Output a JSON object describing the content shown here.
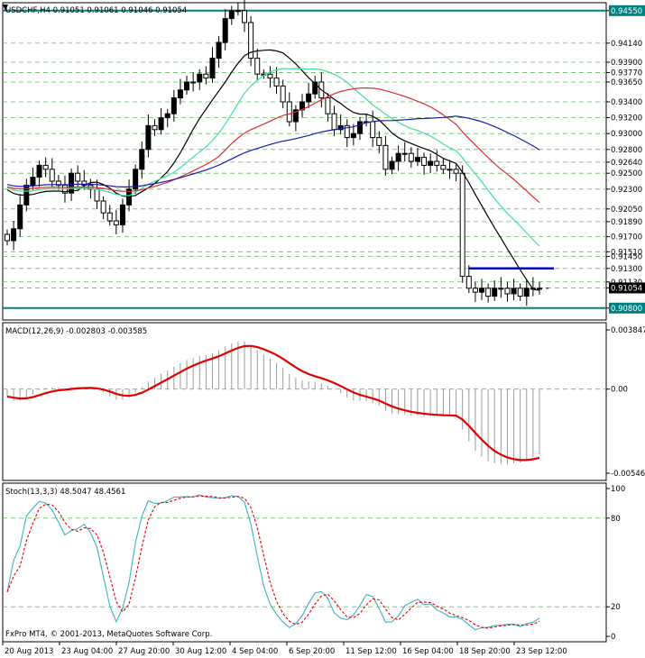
{
  "window": {
    "title": "USDCHF,H4",
    "ohlc": "0.91051 0.91061 0.91046 0.91054",
    "copyright": "FxPro MT4, © 2001-2013, MetaQuotes Software Corp."
  },
  "colors": {
    "background": "#ffffff",
    "grid": "#5fbf5f",
    "candle": "#000000",
    "ma_fast": "#000000",
    "ma_mid": "#40e0a0",
    "ma_slow": "#d32f2f",
    "ma_long": "#1a1aa8",
    "macd_hist": "#9a9a9a",
    "macd_signal": "#e00000",
    "stoch_main": "#3cb0c0",
    "stoch_signal": "#e00000",
    "level_line": "#008080",
    "resistance_line": "#0000cc",
    "price_tag_bg": "#008080",
    "current_price_bg": "#000000"
  },
  "main_panel": {
    "price_labels": [
      "0.94550",
      "0.94140",
      "0.93900",
      "0.93770",
      "0.93650",
      "0.93400",
      "0.93200",
      "0.93000",
      "0.92800",
      "0.92640",
      "0.92500",
      "0.92300",
      "0.92050",
      "0.91890",
      "0.91700",
      "0.91510",
      "0.91450",
      "0.91300",
      "0.91130",
      "0.91054",
      "0.90800"
    ],
    "boxed_labels": [
      "0.94550",
      "0.90800"
    ],
    "current_price": "0.91054",
    "levels": [
      0.9455,
      0.908
    ],
    "resistance": 0.913
  },
  "macd_panel": {
    "title": "MACD(12,26,9) -0.002803 -0.003585",
    "labels": [
      "0.003847",
      "0.00",
      "-0.005465"
    ]
  },
  "stoch_panel": {
    "title": "Stoch(13,3,3) 48.5047 48.4561",
    "labels": [
      "100",
      "80",
      "20",
      "0"
    ]
  },
  "time_axis": {
    "labels": [
      "20 Aug 2013",
      "23 Aug 04:00",
      "27 Aug 20:00",
      "30 Aug 12:00",
      "4 Sep 04:00",
      "6 Sep 20:00",
      "11 Sep 12:00",
      "16 Sep 04:00",
      "18 Sep 20:00",
      "23 Sep 12:00"
    ]
  },
  "chart_data": {
    "type": "candlestick",
    "symbol": "USDCHF",
    "timeframe": "H4",
    "ylim": [
      0.9065,
      0.9465
    ],
    "closes": [
      0.9165,
      0.918,
      0.921,
      0.9235,
      0.9245,
      0.926,
      0.9255,
      0.924,
      0.9235,
      0.9225,
      0.925,
      0.924,
      0.9235,
      0.923,
      0.9215,
      0.92,
      0.919,
      0.9185,
      0.921,
      0.923,
      0.9255,
      0.928,
      0.931,
      0.9305,
      0.932,
      0.9325,
      0.9345,
      0.9355,
      0.9365,
      0.9365,
      0.9375,
      0.937,
      0.9395,
      0.9415,
      0.9445,
      0.9455,
      0.9455,
      0.944,
      0.9395,
      0.9375,
      0.9375,
      0.937,
      0.936,
      0.934,
      0.9315,
      0.933,
      0.934,
      0.935,
      0.9365,
      0.9345,
      0.9325,
      0.9305,
      0.931,
      0.9295,
      0.93,
      0.9315,
      0.9315,
      0.9295,
      0.9285,
      0.9255,
      0.9265,
      0.9275,
      0.9275,
      0.9265,
      0.927,
      0.926,
      0.9265,
      0.926,
      0.9255,
      0.9255,
      0.925,
      0.912,
      0.9105,
      0.91,
      0.9105,
      0.9095,
      0.9105,
      0.9105,
      0.9098,
      0.9105,
      0.9095,
      0.9105,
      0.9105,
      0.9105
    ]
  }
}
